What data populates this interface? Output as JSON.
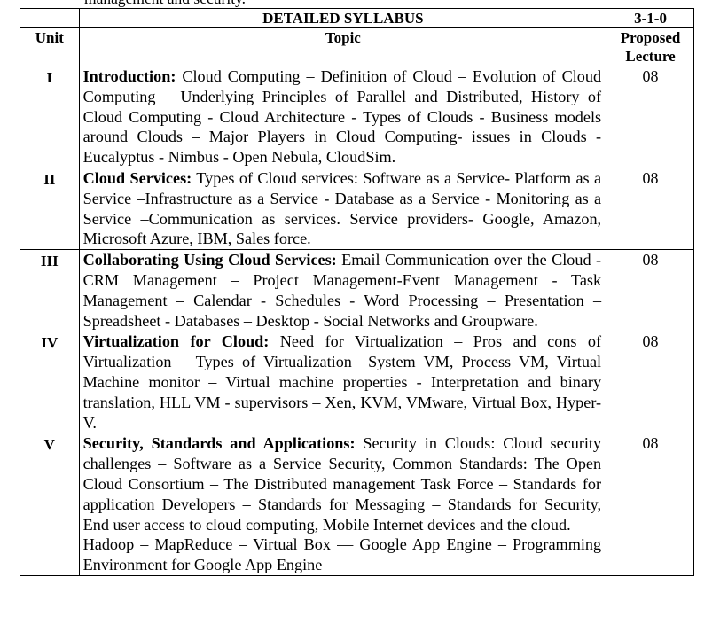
{
  "top_cut_text": "management and security.",
  "header": {
    "title": "DETAILED SYLLABUS",
    "credits": "3-1-0",
    "col_unit": "Unit",
    "col_topic": "Topic",
    "col_lecture_1": "Proposed",
    "col_lecture_2": "Lecture"
  },
  "units": [
    {
      "unit": "I",
      "heading": "Introduction:",
      "text": " Cloud Computing – Definition of Cloud – Evolution of Cloud Computing – Underlying Principles of Parallel and Distributed, History of Cloud Computing - Cloud Architecture - Types of Clouds - Business models around Clouds – Major Players in Cloud Computing- issues in Clouds - Eucalyptus - Nimbus - Open Nebula, CloudSim.",
      "lectures": "08"
    },
    {
      "unit": "II",
      "heading": "Cloud Services:",
      "text": " Types of Cloud services: Software as a Service- Platform as a Service –Infrastructure as a Service - Database as a Service - Monitoring as a Service –Communication as services. Service providers- Google, Amazon, Microsoft Azure, IBM, Sales force.",
      "lectures": "08"
    },
    {
      "unit": "III",
      "heading": "Collaborating Using Cloud Services:",
      "text": " Email Communication over the Cloud - CRM Management – Project Management-Event Management - Task Management – Calendar - Schedules - Word Processing – Presentation – Spreadsheet - Databases – Desktop - Social Networks and Groupware.",
      "lectures": "08"
    },
    {
      "unit": "IV",
      "heading": "Virtualization for Cloud:",
      "text": " Need for Virtualization – Pros and cons of Virtualization – Types of Virtualization –System VM, Process VM, Virtual Machine monitor – Virtual machine properties - Interpretation and binary translation, HLL VM - supervisors – Xen, KVM, VMware, Virtual Box, Hyper-V.",
      "lectures": "08"
    },
    {
      "unit": "V",
      "heading": "Security, Standards and Applications:",
      "text": " Security in Clouds: Cloud security challenges – Software as a Service Security, Common Standards: The Open Cloud Consortium – The Distributed management Task Force – Standards for application Developers – Standards for Messaging – Standards for Security, End user access to cloud computing, Mobile Internet devices and the cloud.",
      "extra": "Hadoop – MapReduce – Virtual Box — Google App Engine – Programming Environment for Google App Engine",
      "lectures": "08"
    }
  ]
}
